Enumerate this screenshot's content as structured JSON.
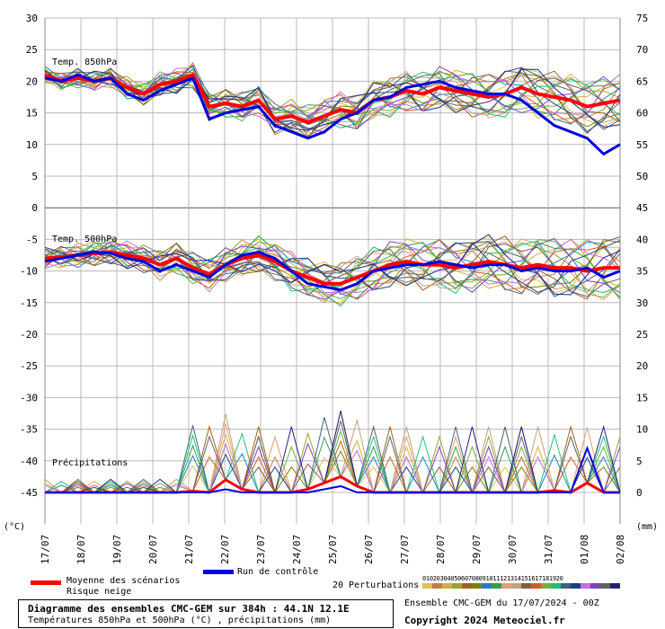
{
  "chart_data": {
    "type": "line",
    "x_dates": [
      "17/07",
      "18/07",
      "19/07",
      "20/07",
      "21/07",
      "22/07",
      "23/07",
      "24/07",
      "25/07",
      "26/07",
      "27/07",
      "28/07",
      "29/07",
      "30/07",
      "31/07",
      "01/08",
      "02/08"
    ],
    "left_unit": "(°C)",
    "right_unit": "(mm)",
    "left_ticks": [
      30,
      25,
      20,
      15,
      10,
      5,
      0,
      -5,
      -10,
      -15,
      -20,
      -25,
      -30,
      -35,
      -40,
      -45
    ],
    "right_ticks": [
      75,
      70,
      65,
      60,
      55,
      50,
      45,
      40,
      35,
      30,
      25,
      20,
      15,
      10,
      5,
      0
    ],
    "panel_labels": {
      "t850": "Temp. 850hPa",
      "t500": "Temp. 500hPa",
      "precip": "Précipitations"
    },
    "series": [
      {
        "name": "Moyenne des scénarios",
        "color": "#ff0000",
        "t850": [
          21,
          20,
          20.5,
          20,
          20.5,
          19,
          18,
          19.5,
          20,
          21,
          16,
          16.5,
          16,
          17,
          14,
          14.5,
          13.5,
          14.5,
          15.5,
          15,
          17,
          17.5,
          18.5,
          18,
          19,
          18.5,
          18,
          17.5,
          18,
          19,
          18,
          17.5,
          17,
          16,
          16.5,
          17
        ],
        "t500": [
          -8,
          -7.8,
          -7.5,
          -7.2,
          -7,
          -7.5,
          -8,
          -9,
          -8,
          -9.5,
          -10.5,
          -9,
          -8,
          -7.5,
          -8.5,
          -10,
          -11,
          -12,
          -12,
          -11,
          -10,
          -9,
          -8.5,
          -9,
          -9,
          -9.5,
          -9,
          -8.5,
          -9,
          -9.5,
          -9,
          -9.5,
          -9.5,
          -10,
          -9.5,
          -9.5
        ],
        "precip": [
          0,
          0,
          0,
          0,
          0,
          0,
          0,
          0,
          0,
          0.2,
          0,
          2,
          0.5,
          0,
          0,
          0,
          0.5,
          1.5,
          2.5,
          1,
          0,
          0,
          0,
          0,
          0,
          0,
          0,
          0,
          0,
          0,
          0,
          0.3,
          0,
          1.5,
          0,
          0
        ]
      },
      {
        "name": "Run de contrôle",
        "color": "#0000e0",
        "t850": [
          20.5,
          20,
          21,
          20,
          20.5,
          18,
          17,
          18.5,
          19.5,
          20.5,
          14,
          15,
          15.5,
          16,
          13,
          12,
          11,
          12,
          14,
          15,
          17,
          17.5,
          19,
          19.5,
          20,
          19,
          18.5,
          18,
          18,
          17,
          15,
          13,
          12,
          11,
          8.5,
          10
        ],
        "t500": [
          -8.5,
          -8,
          -7.5,
          -7,
          -7.2,
          -8,
          -8.5,
          -10,
          -9,
          -10,
          -11,
          -9,
          -7.5,
          -7,
          -8,
          -10,
          -12,
          -12.5,
          -13,
          -12,
          -10,
          -9.5,
          -9,
          -9,
          -8.5,
          -9,
          -9.5,
          -9,
          -9,
          -10,
          -9.5,
          -10,
          -10,
          -9.5,
          -11,
          -10
        ],
        "precip": [
          0,
          0,
          0,
          0,
          0,
          0,
          0,
          0,
          0,
          0,
          0,
          0.5,
          0,
          0,
          0,
          0,
          0,
          0.5,
          1,
          0,
          0,
          0,
          0,
          0,
          0,
          0,
          0,
          0,
          0,
          0,
          0,
          0,
          0,
          7,
          0,
          0
        ]
      }
    ],
    "legend": {
      "mean_label": "Moyenne des scénarios",
      "snow_label": "Risque neige",
      "control_label": "Run de contrôle",
      "perturbations_label": "20 Perturbations",
      "perturbation_numbers": [
        "01",
        "02",
        "03",
        "04",
        "05",
        "06",
        "07",
        "08",
        "09",
        "10",
        "11",
        "12",
        "13",
        "14",
        "15",
        "16",
        "17",
        "18",
        "19",
        "20"
      ],
      "perturbation_colors": [
        "#e0c050",
        "#c08040",
        "#d0b040",
        "#a0a030",
        "#a06020",
        "#808000",
        "#2080c0",
        "#30a050",
        "#e0a070",
        "#c0a080",
        "#806040",
        "#d06020",
        "#70b040",
        "#20c070",
        "#406080",
        "#204080",
        "#c070e0",
        "#8040c0",
        "#606060",
        "#202080"
      ]
    },
    "grid": true
  },
  "footer": {
    "title": "Diagramme des ensembles CMC-GEM sur 384h : 44.1N 12.1E",
    "subtitle": "Températures 850hPa et 500hPa (°C) , précipitations (mm)",
    "ensemble": "Ensemble CMC-GEM du 17/07/2024 - 00Z",
    "copyright": "Copyright 2024 Meteociel.fr"
  }
}
